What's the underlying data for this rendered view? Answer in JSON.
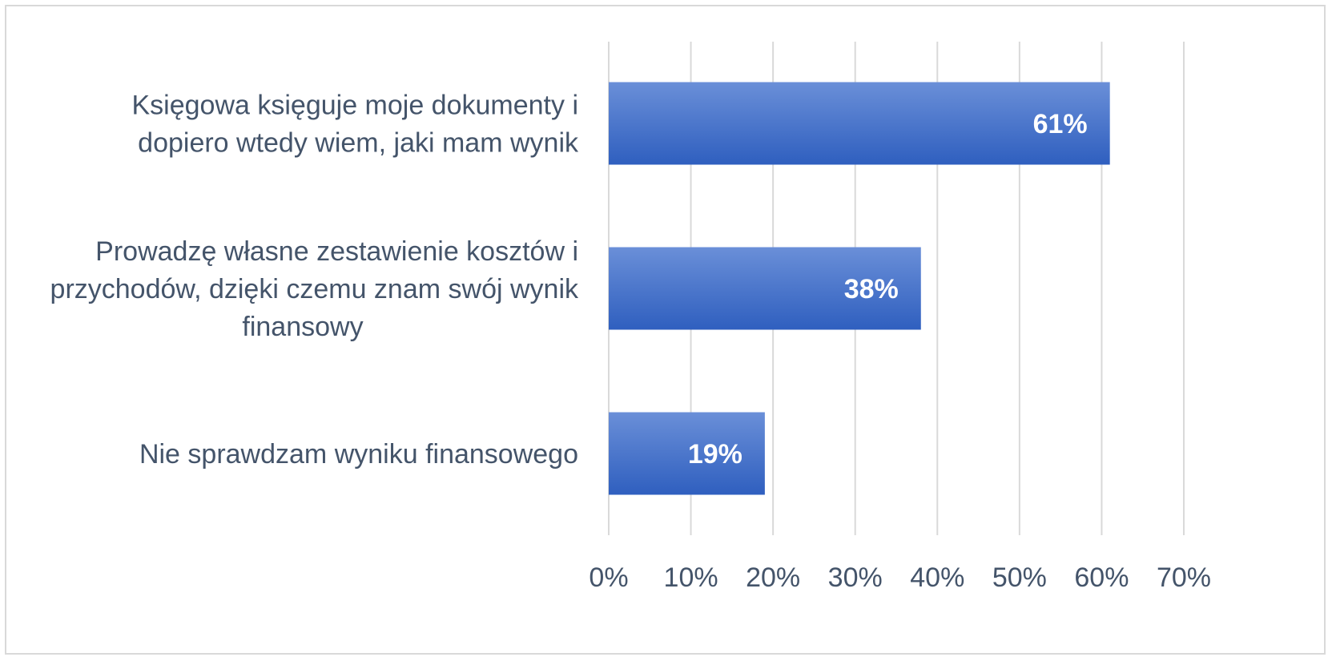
{
  "chart_data": {
    "type": "bar",
    "orientation": "horizontal",
    "categories": [
      [
        "Księgowa księguje moje dokumenty i",
        "dopiero wtedy wiem, jaki mam wynik"
      ],
      [
        "Prowadzę własne zestawienie kosztów i",
        "przychodów, dzięki czemu znam swój wynik",
        "finansowy"
      ],
      [
        "Nie sprawdzam wyniku finansowego"
      ]
    ],
    "values": [
      61,
      38,
      19
    ],
    "data_labels": [
      "61%",
      "38%",
      "19%"
    ],
    "xlim": [
      0,
      70
    ],
    "ticks": [
      0,
      10,
      20,
      30,
      40,
      50,
      60,
      70
    ],
    "tick_labels": [
      "0%",
      "10%",
      "20%",
      "30%",
      "40%",
      "50%",
      "60%",
      "70%"
    ],
    "title": "",
    "xlabel": "",
    "ylabel": "",
    "grid": true,
    "legend": "none",
    "colors": {
      "bar_top": "#6a8fd8",
      "bar_bottom": "#2f5fbf",
      "grid": "#d9d9d9",
      "text": "#44546a",
      "data_label": "#ffffff"
    }
  }
}
